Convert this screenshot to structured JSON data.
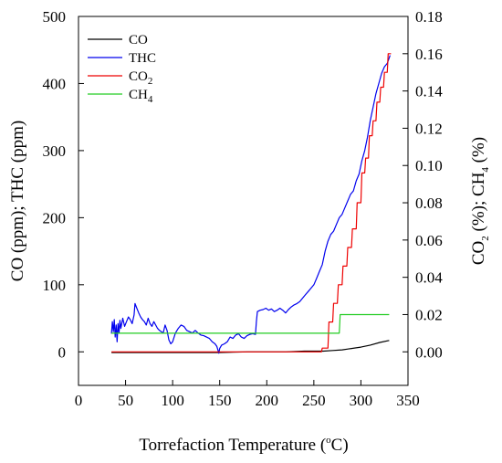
{
  "chart_data": {
    "type": "line",
    "xlabel": "Torrefaction Temperature (°C)",
    "xlabel_parts": {
      "before": "Torrefaction Temperature (",
      "super": "o",
      "after": "C)"
    },
    "ylabel_left": "CO (ppm); THC (ppm)",
    "ylabel_right": "CO2 (%); CH4 (%)",
    "ylabel_right_parts": {
      "a": "CO",
      "a_sub": "2",
      "b": " (%); CH",
      "b_sub": "4",
      "c": " (%)"
    },
    "xlim": [
      0,
      350
    ],
    "ylim_left": [
      -50,
      500
    ],
    "ylim_right": [
      -0.018,
      0.18
    ],
    "x_ticks": [
      0,
      50,
      100,
      150,
      200,
      250,
      300,
      350
    ],
    "x_tick_labels": [
      "0",
      "50",
      "100",
      "150",
      "200",
      "250",
      "300",
      "350"
    ],
    "y_left_ticks": [
      0,
      100,
      200,
      300,
      400,
      500
    ],
    "y_left_tick_labels": [
      "0",
      "100",
      "200",
      "300",
      "400",
      "500"
    ],
    "y_right_ticks": [
      0,
      0.02,
      0.04,
      0.06,
      0.08,
      0.1,
      0.12,
      0.14,
      0.16,
      0.18
    ],
    "y_right_tick_labels": [
      "0.00",
      "0.02",
      "0.04",
      "0.06",
      "0.08",
      "0.10",
      "0.12",
      "0.14",
      "0.16",
      "0.18"
    ],
    "legend_position": "top-left",
    "grid": false,
    "series": [
      {
        "name": "CO",
        "legend_parts": {
          "text": "CO",
          "sub": ""
        },
        "color": "#000000",
        "axis": "left",
        "x": [
          35,
          150,
          180,
          200,
          220,
          240,
          260,
          270,
          280,
          290,
          300,
          310,
          320,
          330
        ],
        "y": [
          -1,
          -1,
          0,
          0,
          0,
          1,
          1,
          2,
          3,
          5,
          7,
          10,
          14,
          17
        ]
      },
      {
        "name": "THC",
        "legend_parts": {
          "text": "THC",
          "sub": ""
        },
        "color": "#0000ee",
        "axis": "left",
        "x": [
          35,
          36,
          37,
          38,
          39,
          40,
          41,
          42,
          43,
          44,
          45,
          47,
          49,
          51,
          53,
          55,
          57,
          59,
          60,
          62,
          64,
          66,
          68,
          70,
          72,
          74,
          76,
          78,
          80,
          82,
          84,
          86,
          88,
          90,
          92,
          94,
          96,
          98,
          100,
          103,
          106,
          109,
          112,
          115,
          118,
          121,
          124,
          127,
          130,
          133,
          136,
          139,
          142,
          145,
          147,
          148,
          149,
          150,
          152,
          155,
          158,
          161,
          164,
          167,
          170,
          173,
          176,
          179,
          182,
          185,
          188,
          189,
          190,
          193,
          196,
          199,
          202,
          205,
          208,
          211,
          214,
          217,
          220,
          223,
          226,
          229,
          232,
          235,
          238,
          241,
          244,
          247,
          250,
          253,
          256,
          259,
          262,
          265,
          268,
          271,
          274,
          277,
          280,
          283,
          286,
          289,
          292,
          295,
          298,
          301,
          304,
          307,
          310,
          313,
          316,
          319,
          322,
          325,
          328,
          331
        ],
        "y": [
          27,
          45,
          30,
          48,
          22,
          40,
          15,
          42,
          28,
          47,
          35,
          50,
          38,
          45,
          52,
          48,
          42,
          55,
          72,
          65,
          58,
          52,
          48,
          45,
          40,
          50,
          42,
          38,
          45,
          40,
          35,
          32,
          30,
          28,
          40,
          32,
          18,
          12,
          15,
          28,
          35,
          40,
          38,
          32,
          30,
          28,
          32,
          28,
          25,
          24,
          22,
          20,
          15,
          12,
          8,
          3,
          -2,
          5,
          10,
          12,
          15,
          22,
          20,
          25,
          27,
          22,
          20,
          24,
          26,
          27,
          26,
          45,
          60,
          62,
          63,
          65,
          62,
          64,
          60,
          62,
          65,
          62,
          58,
          63,
          67,
          70,
          72,
          75,
          80,
          85,
          90,
          95,
          100,
          110,
          120,
          130,
          150,
          165,
          175,
          180,
          190,
          200,
          205,
          215,
          225,
          235,
          240,
          255,
          265,
          285,
          300,
          320,
          345,
          365,
          385,
          400,
          415,
          425,
          430,
          442
        ]
      },
      {
        "name": "CO2",
        "legend_parts": {
          "text": "CO",
          "sub": "2"
        },
        "color": "#ee0000",
        "axis": "right",
        "x": [
          35,
          258,
          259,
          265,
          266,
          270,
          271,
          275,
          276,
          280,
          281,
          285,
          286,
          290,
          291,
          295,
          296,
          300,
          301,
          304,
          305,
          308,
          309,
          312,
          313,
          316,
          317,
          320,
          321,
          324,
          325,
          328,
          329,
          332
        ],
        "y": [
          0,
          0,
          0.002,
          0.002,
          0.016,
          0.016,
          0.026,
          0.026,
          0.036,
          0.036,
          0.046,
          0.046,
          0.056,
          0.056,
          0.066,
          0.066,
          0.08,
          0.08,
          0.096,
          0.096,
          0.104,
          0.104,
          0.116,
          0.116,
          0.124,
          0.124,
          0.134,
          0.134,
          0.142,
          0.142,
          0.15,
          0.15,
          0.16,
          0.16
        ]
      },
      {
        "name": "CH4",
        "legend_parts": {
          "text": "CH",
          "sub": "4"
        },
        "color": "#22cc22",
        "axis": "right",
        "x": [
          35,
          277,
          278,
          330
        ],
        "y": [
          0.01,
          0.01,
          0.02,
          0.02
        ]
      }
    ]
  }
}
